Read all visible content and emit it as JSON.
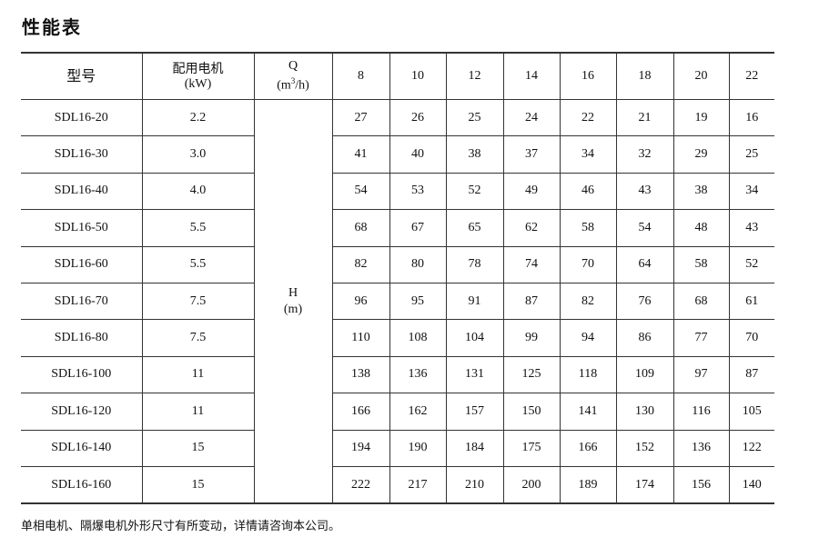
{
  "title": "性能表",
  "table": {
    "header": {
      "model": "型号",
      "motor_label": "配用电机",
      "motor_unit": "(kW)",
      "q_label": "Q",
      "q_unit_prefix": "(m",
      "q_unit_sup": "3",
      "q_unit_suffix": "/h)",
      "flows": [
        "8",
        "10",
        "12",
        "14",
        "16",
        "18",
        "20",
        "22"
      ]
    },
    "h_label": "H",
    "h_unit": "(m)",
    "rows": [
      {
        "model": "SDL16-20",
        "motor": "2.2",
        "h": [
          "27",
          "26",
          "25",
          "24",
          "22",
          "21",
          "19",
          "16"
        ]
      },
      {
        "model": "SDL16-30",
        "motor": "3.0",
        "h": [
          "41",
          "40",
          "38",
          "37",
          "34",
          "32",
          "29",
          "25"
        ]
      },
      {
        "model": "SDL16-40",
        "motor": "4.0",
        "h": [
          "54",
          "53",
          "52",
          "49",
          "46",
          "43",
          "38",
          "34"
        ]
      },
      {
        "model": "SDL16-50",
        "motor": "5.5",
        "h": [
          "68",
          "67",
          "65",
          "62",
          "58",
          "54",
          "48",
          "43"
        ]
      },
      {
        "model": "SDL16-60",
        "motor": "5.5",
        "h": [
          "82",
          "80",
          "78",
          "74",
          "70",
          "64",
          "58",
          "52"
        ]
      },
      {
        "model": "SDL16-70",
        "motor": "7.5",
        "h": [
          "96",
          "95",
          "91",
          "87",
          "82",
          "76",
          "68",
          "61"
        ]
      },
      {
        "model": "SDL16-80",
        "motor": "7.5",
        "h": [
          "110",
          "108",
          "104",
          "99",
          "94",
          "86",
          "77",
          "70"
        ]
      },
      {
        "model": "SDL16-100",
        "motor": "11",
        "h": [
          "138",
          "136",
          "131",
          "125",
          "118",
          "109",
          "97",
          "87"
        ]
      },
      {
        "model": "SDL16-120",
        "motor": "11",
        "h": [
          "166",
          "162",
          "157",
          "150",
          "141",
          "130",
          "116",
          "105"
        ]
      },
      {
        "model": "SDL16-140",
        "motor": "15",
        "h": [
          "194",
          "190",
          "184",
          "175",
          "166",
          "152",
          "136",
          "122"
        ]
      },
      {
        "model": "SDL16-160",
        "motor": "15",
        "h": [
          "222",
          "217",
          "210",
          "200",
          "189",
          "174",
          "156",
          "140"
        ]
      }
    ]
  },
  "note": "单相电机、隔爆电机外形尺寸有所变动，详情请咨询本公司。"
}
